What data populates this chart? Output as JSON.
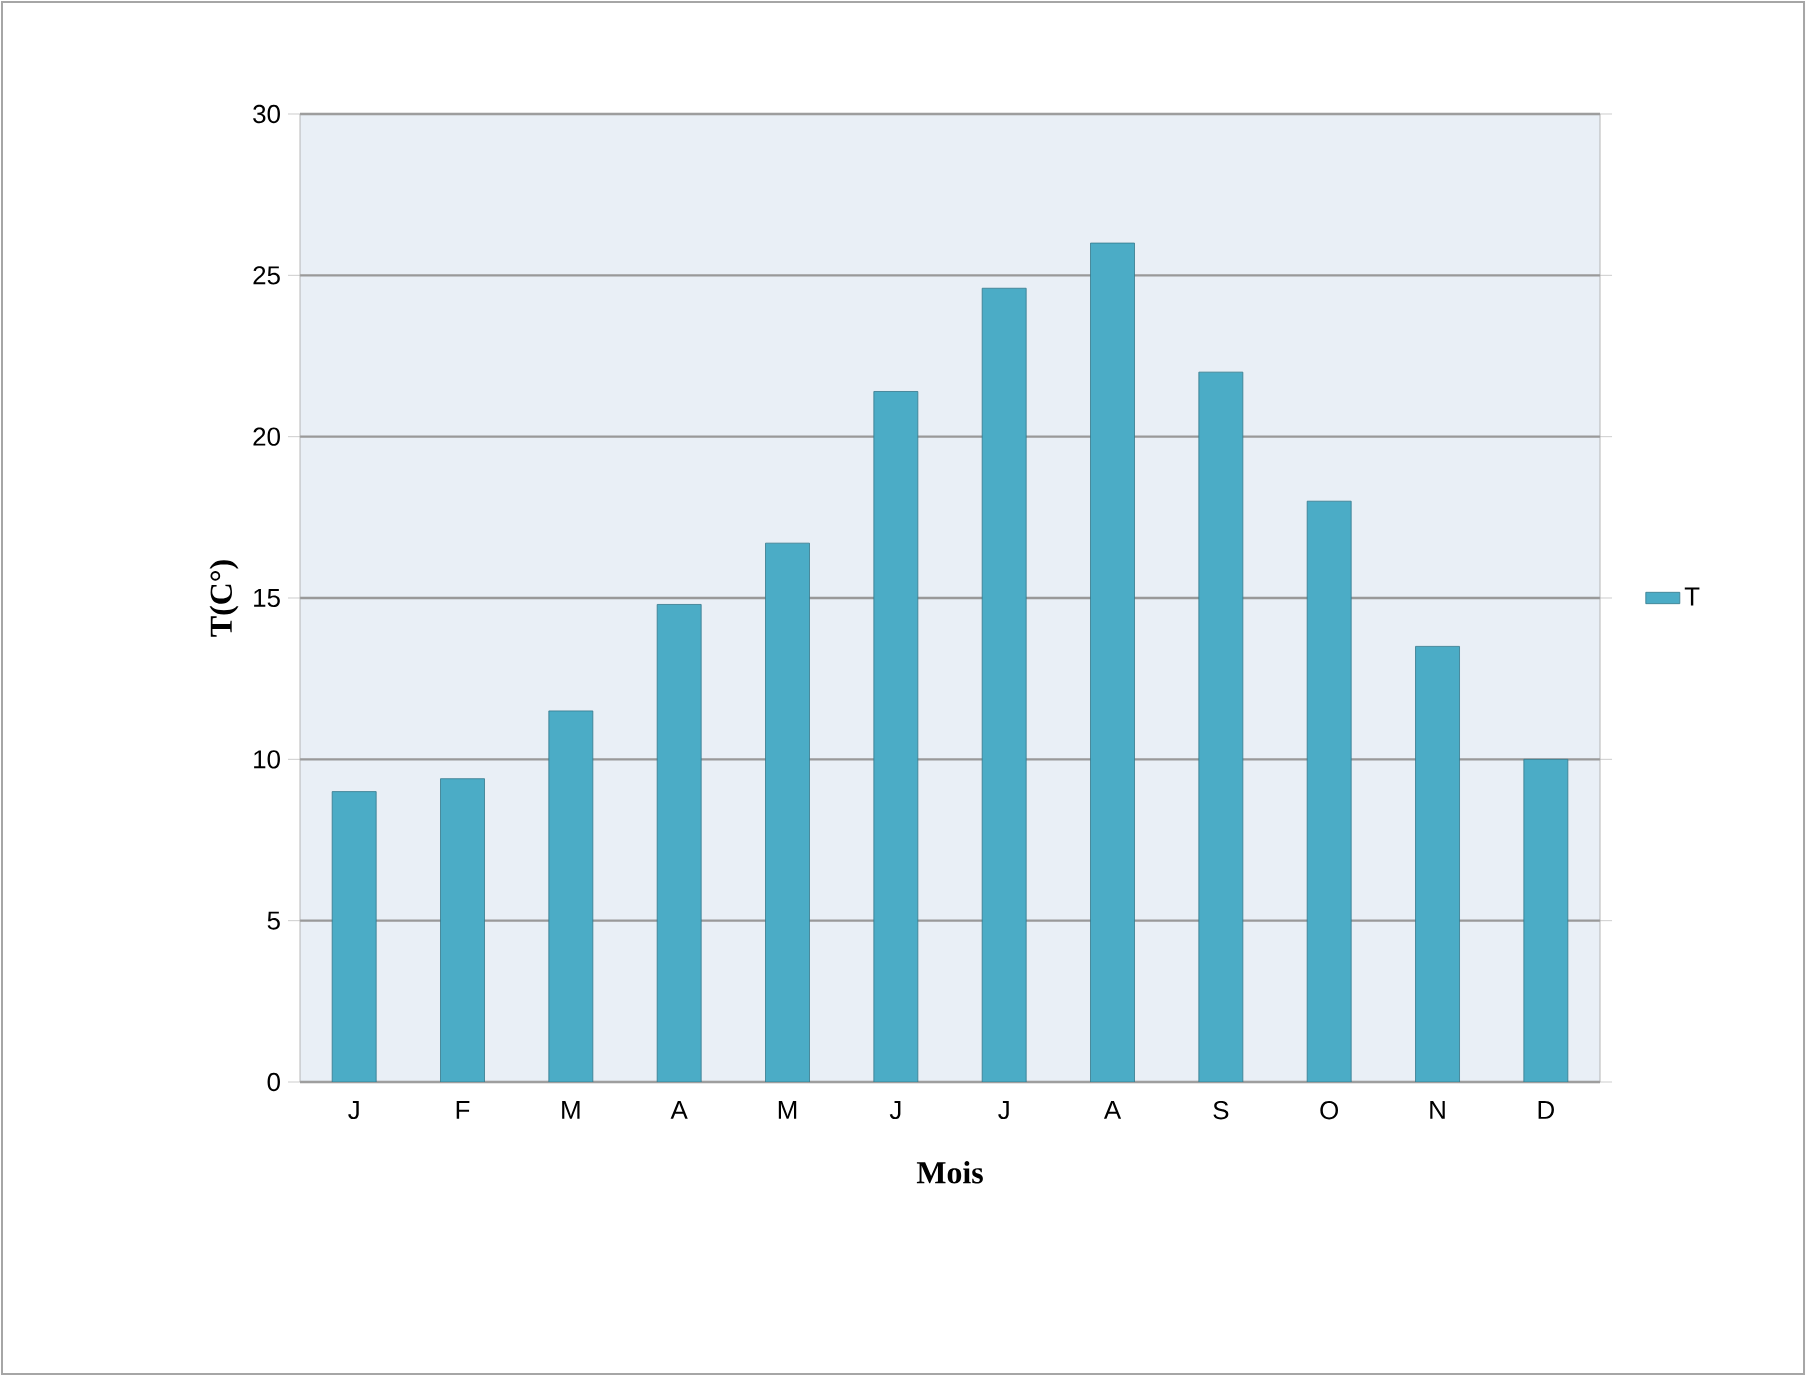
{
  "chart_data": {
    "type": "bar",
    "xlabel": "Mois",
    "ylabel": "T(C°)",
    "categories": [
      "J",
      "F",
      "M",
      "A",
      "M",
      "J",
      "J",
      "A",
      "S",
      "O",
      "N",
      "D"
    ],
    "series": [
      {
        "name": "T",
        "color": "#4bacc6",
        "values": [
          9.0,
          9.4,
          11.5,
          14.8,
          16.7,
          21.4,
          24.6,
          26.0,
          22.0,
          18.0,
          13.5,
          10.0
        ]
      }
    ],
    "ylim": [
      0,
      30
    ],
    "yticks": [
      0,
      5,
      10,
      15,
      20,
      25,
      30
    ],
    "grid": "y",
    "legend": "right"
  }
}
